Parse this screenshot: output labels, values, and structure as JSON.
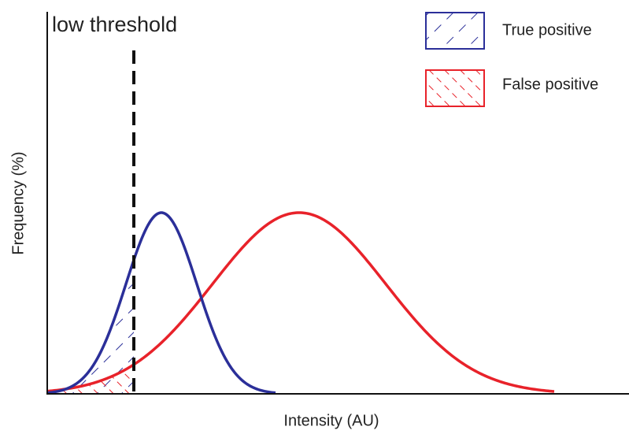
{
  "threshold_label": "low threshold",
  "legend": {
    "true_positive": "True positive",
    "false_positive": "False positive"
  },
  "y_axis_label": "Frequency (%)",
  "x_axis_label": "Intensity (AU)"
}
